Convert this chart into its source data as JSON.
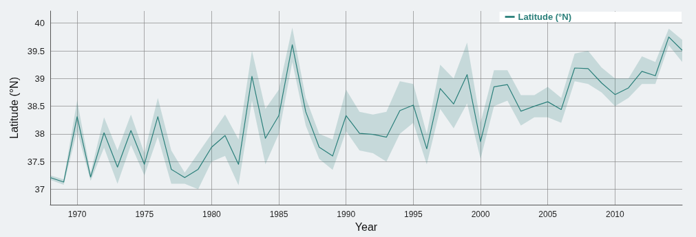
{
  "chart_data": {
    "type": "line",
    "xlabel": "Year",
    "ylabel": "Latitude (°N)",
    "x": [
      1968,
      1969,
      1970,
      1971,
      1972,
      1973,
      1974,
      1975,
      1976,
      1977,
      1978,
      1979,
      1980,
      1981,
      1982,
      1983,
      1984,
      1985,
      1986,
      1987,
      1988,
      1989,
      1990,
      1991,
      1992,
      1993,
      1994,
      1995,
      1996,
      1997,
      1998,
      1999,
      2000,
      2001,
      2002,
      2003,
      2004,
      2005,
      2006,
      2007,
      2008,
      2009,
      2010,
      2011,
      2012,
      2013,
      2014,
      2015
    ],
    "series": [
      {
        "name": "Latitude (°N)",
        "color": "#2a7f7a",
        "values": [
          37.21,
          37.13,
          38.31,
          37.22,
          38.02,
          37.4,
          38.06,
          37.45,
          38.31,
          37.36,
          37.21,
          37.36,
          37.76,
          37.97,
          37.45,
          39.04,
          37.92,
          38.33,
          39.61,
          38.4,
          37.76,
          37.6,
          38.33,
          38.01,
          37.99,
          37.94,
          38.42,
          38.52,
          37.73,
          38.82,
          38.54,
          39.07,
          37.86,
          38.85,
          38.89,
          38.41,
          38.5,
          38.58,
          38.44,
          39.19,
          39.18,
          38.92,
          38.71,
          38.83,
          39.13,
          39.05,
          39.75,
          39.51
        ],
        "lower": [
          37.17,
          37.08,
          38.05,
          37.15,
          37.75,
          37.1,
          37.8,
          37.25,
          37.95,
          37.1,
          37.1,
          37.0,
          37.5,
          37.6,
          37.07,
          38.6,
          37.45,
          38.0,
          39.3,
          38.15,
          37.55,
          37.35,
          38.05,
          37.7,
          37.65,
          37.5,
          38.0,
          38.2,
          37.45,
          38.45,
          38.1,
          38.55,
          37.55,
          38.5,
          38.6,
          38.15,
          38.3,
          38.3,
          38.2,
          38.95,
          38.9,
          38.75,
          38.5,
          38.65,
          38.9,
          38.9,
          39.6,
          39.3
        ],
        "upper": [
          37.25,
          37.18,
          38.6,
          37.3,
          38.3,
          37.7,
          38.35,
          37.65,
          38.65,
          37.7,
          37.3,
          37.65,
          38.0,
          38.35,
          37.9,
          39.5,
          38.45,
          38.8,
          39.92,
          38.65,
          38.0,
          37.9,
          38.8,
          38.4,
          38.35,
          38.4,
          38.95,
          38.9,
          38.0,
          39.25,
          39.0,
          39.65,
          38.2,
          39.15,
          39.15,
          38.7,
          38.7,
          38.85,
          38.65,
          39.45,
          39.5,
          39.2,
          39.0,
          39.0,
          39.4,
          39.3,
          39.9,
          39.7
        ]
      }
    ],
    "xlim": [
      1968,
      2015
    ],
    "xticks": [
      1970,
      1975,
      1980,
      1985,
      1990,
      1995,
      2000,
      2005,
      2010
    ],
    "ylim": [
      36.72,
      40.22
    ],
    "yticks": [
      37,
      37.5,
      38,
      38.5,
      39,
      39.5,
      40
    ],
    "grid": true,
    "legend": "top right",
    "marker": "none",
    "line_style": "solid"
  }
}
